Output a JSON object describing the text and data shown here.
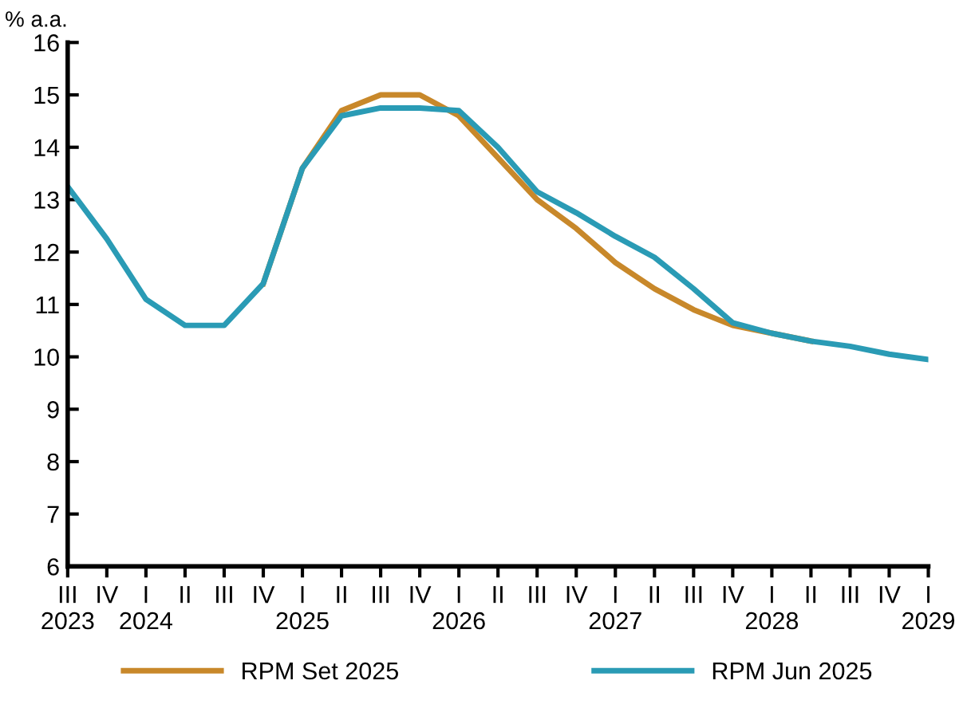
{
  "chart_data": {
    "type": "line",
    "ylabel": "% a.a.",
    "categories": [
      "III\n2023",
      "IV",
      "I\n2024",
      "II",
      "III",
      "IV",
      "I\n2025",
      "II",
      "III",
      "IV",
      "I\n2026",
      "II",
      "III",
      "IV",
      "I\n2027",
      "II",
      "III",
      "IV",
      "I\n2028",
      "II",
      "III",
      "IV",
      "I\n2029"
    ],
    "series": [
      {
        "name": "RPM Set 2025",
        "color": "#c8882a",
        "values": [
          null,
          null,
          null,
          null,
          null,
          11.4,
          13.6,
          14.7,
          15.0,
          15.0,
          14.6,
          13.8,
          13.0,
          12.45,
          11.8,
          11.3,
          10.9,
          10.6,
          10.45,
          10.3,
          null,
          null,
          null
        ]
      },
      {
        "name": "RPM Jun 2025",
        "color": "#2a9bb5",
        "values": [
          13.25,
          12.25,
          11.1,
          10.6,
          10.6,
          11.4,
          13.6,
          14.6,
          14.75,
          14.75,
          14.7,
          14.0,
          13.15,
          12.75,
          12.3,
          11.9,
          11.3,
          10.65,
          10.45,
          10.3,
          10.2,
          10.05,
          9.95
        ]
      }
    ],
    "ylim": [
      6,
      16
    ],
    "yticks": [
      6,
      7,
      8,
      9,
      10,
      11,
      12,
      13,
      14,
      15,
      16
    ],
    "grid": false,
    "legend": "bottom",
    "marker": "none",
    "line_style": "solid"
  }
}
